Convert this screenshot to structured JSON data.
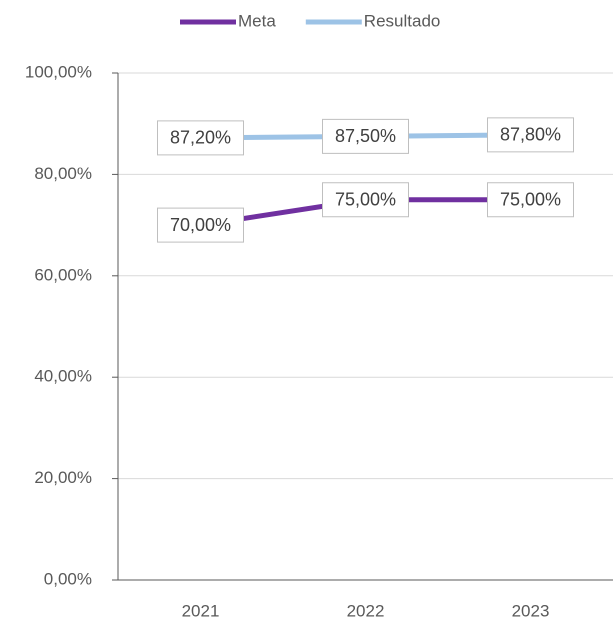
{
  "chart_data": {
    "type": "line",
    "categories": [
      "2021",
      "2022",
      "2023"
    ],
    "series": [
      {
        "name": "Meta",
        "color": "#7030a0",
        "values": [
          70,
          75,
          75
        ],
        "value_labels": [
          "70,00%",
          "75,00%",
          "75,00%"
        ]
      },
      {
        "name": "Resultado",
        "color": "#9dc3e6",
        "values": [
          87.2,
          87.5,
          87.8
        ],
        "value_labels": [
          "87,20%",
          "87,50%",
          "87,80%"
        ]
      }
    ],
    "ylim": [
      0,
      100
    ],
    "yticks": [
      {
        "value": 0,
        "label": "0,00%"
      },
      {
        "value": 20,
        "label": "20,00%"
      },
      {
        "value": 40,
        "label": "40,00%"
      },
      {
        "value": 60,
        "label": "60,00%"
      },
      {
        "value": 80,
        "label": "80,00%"
      },
      {
        "value": 100,
        "label": "100,00%"
      }
    ],
    "grid": true,
    "legend": "top"
  }
}
